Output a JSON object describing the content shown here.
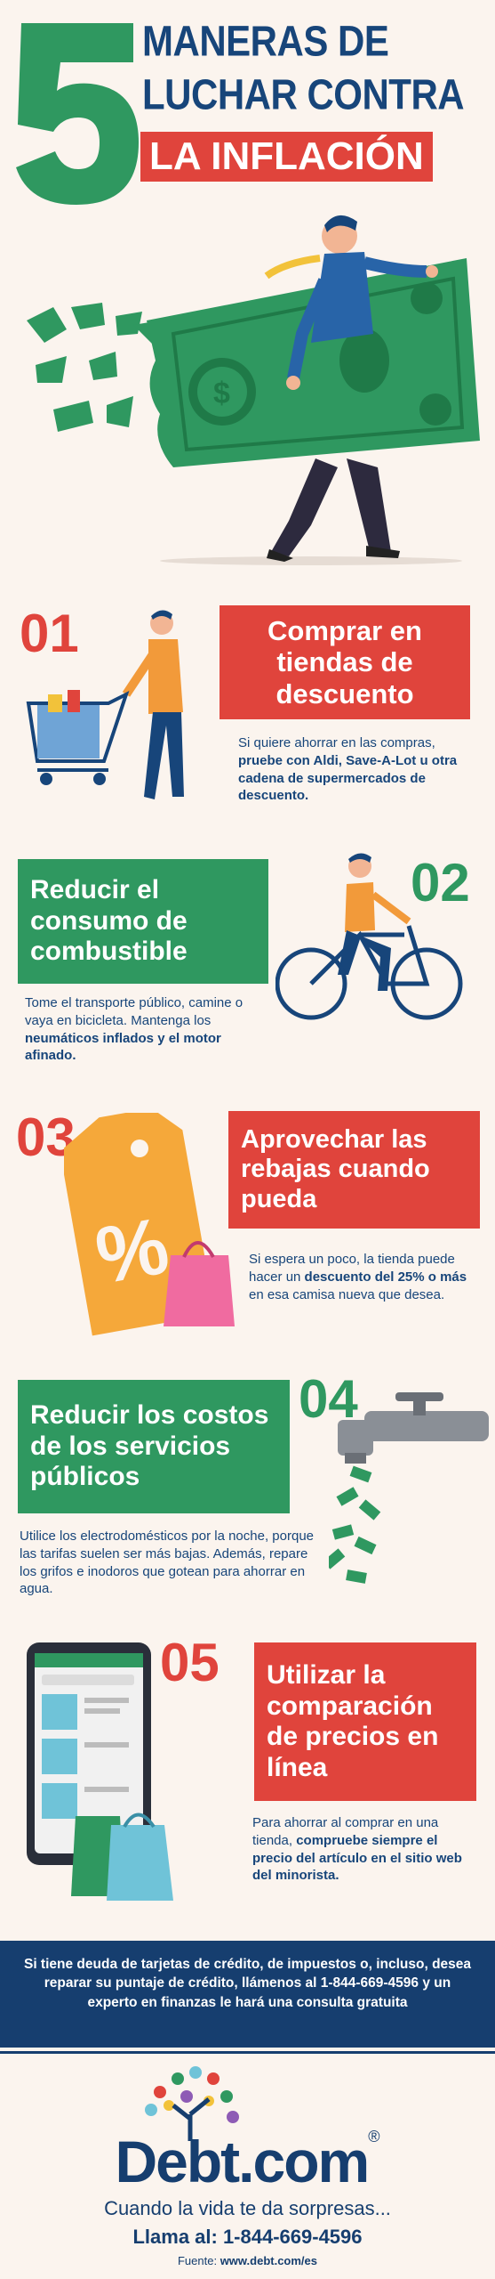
{
  "header": {
    "number": "5",
    "line1": "MANERAS DE",
    "line2": "LUCHAR CONTRA",
    "line3": "LA INFLACIÓN"
  },
  "tips": [
    {
      "number": "01",
      "title": "Comprar en tiendas de descuento",
      "desc_parts": [
        {
          "t": "Si quiere ahorrar en las compras, ",
          "b": false
        },
        {
          "t": "pruebe con Aldi, Save-A-Lot u otra cadena de supermercados de descuento.",
          "b": true
        }
      ]
    },
    {
      "number": "02",
      "title": "Reducir el consumo de combustible",
      "desc_parts": [
        {
          "t": "Tome el transporte público, camine o vaya en bicicleta. Mantenga los ",
          "b": false
        },
        {
          "t": "neumáticos inflados y el motor afinado.",
          "b": true
        }
      ]
    },
    {
      "number": "03",
      "title": "Aprovechar las rebajas cuando pueda",
      "desc_parts": [
        {
          "t": "Si espera un poco, la tienda puede hacer un ",
          "b": false
        },
        {
          "t": "descuento del 25% o más",
          "b": true
        },
        {
          "t": " en esa camisa nueva que desea.",
          "b": false
        }
      ]
    },
    {
      "number": "04",
      "title": "Reducir los costos de los servicios públicos",
      "desc_parts": [
        {
          "t": "Utilice los electrodomésticos por la noche, porque las tarifas suelen ser más bajas. Además, repare los grifos e inodoros que gotean para ahorrar en agua.",
          "b": false
        }
      ]
    },
    {
      "number": "05",
      "title": "Utilizar la comparación de precios en línea",
      "desc_parts": [
        {
          "t": "Para ahorrar al comprar en una tienda, ",
          "b": false
        },
        {
          "t": "compruebe siempre el precio del artículo en el sitio web del minorista.",
          "b": true
        }
      ]
    }
  ],
  "cta": {
    "text": "Si tiene deuda de tarjetas de crédito, de impuestos o, incluso, desea reparar su puntaje de crédito, llámenos al 1-844-669-4596 y un experto en finanzas le hará una consulta gratuita"
  },
  "footer": {
    "logo": "Debt.com",
    "registered": "®",
    "tagline": "Cuando la vida te da sorpresas...",
    "phone": "Llama al: 1-844-669-4596",
    "source_label": "Fuente:",
    "source_url": "www.debt.com/es"
  },
  "colors": {
    "navy": "#17457a",
    "red": "#e0443c",
    "green": "#2f9860",
    "cream": "#fbf4ee",
    "footer_navy": "#163e6f"
  }
}
